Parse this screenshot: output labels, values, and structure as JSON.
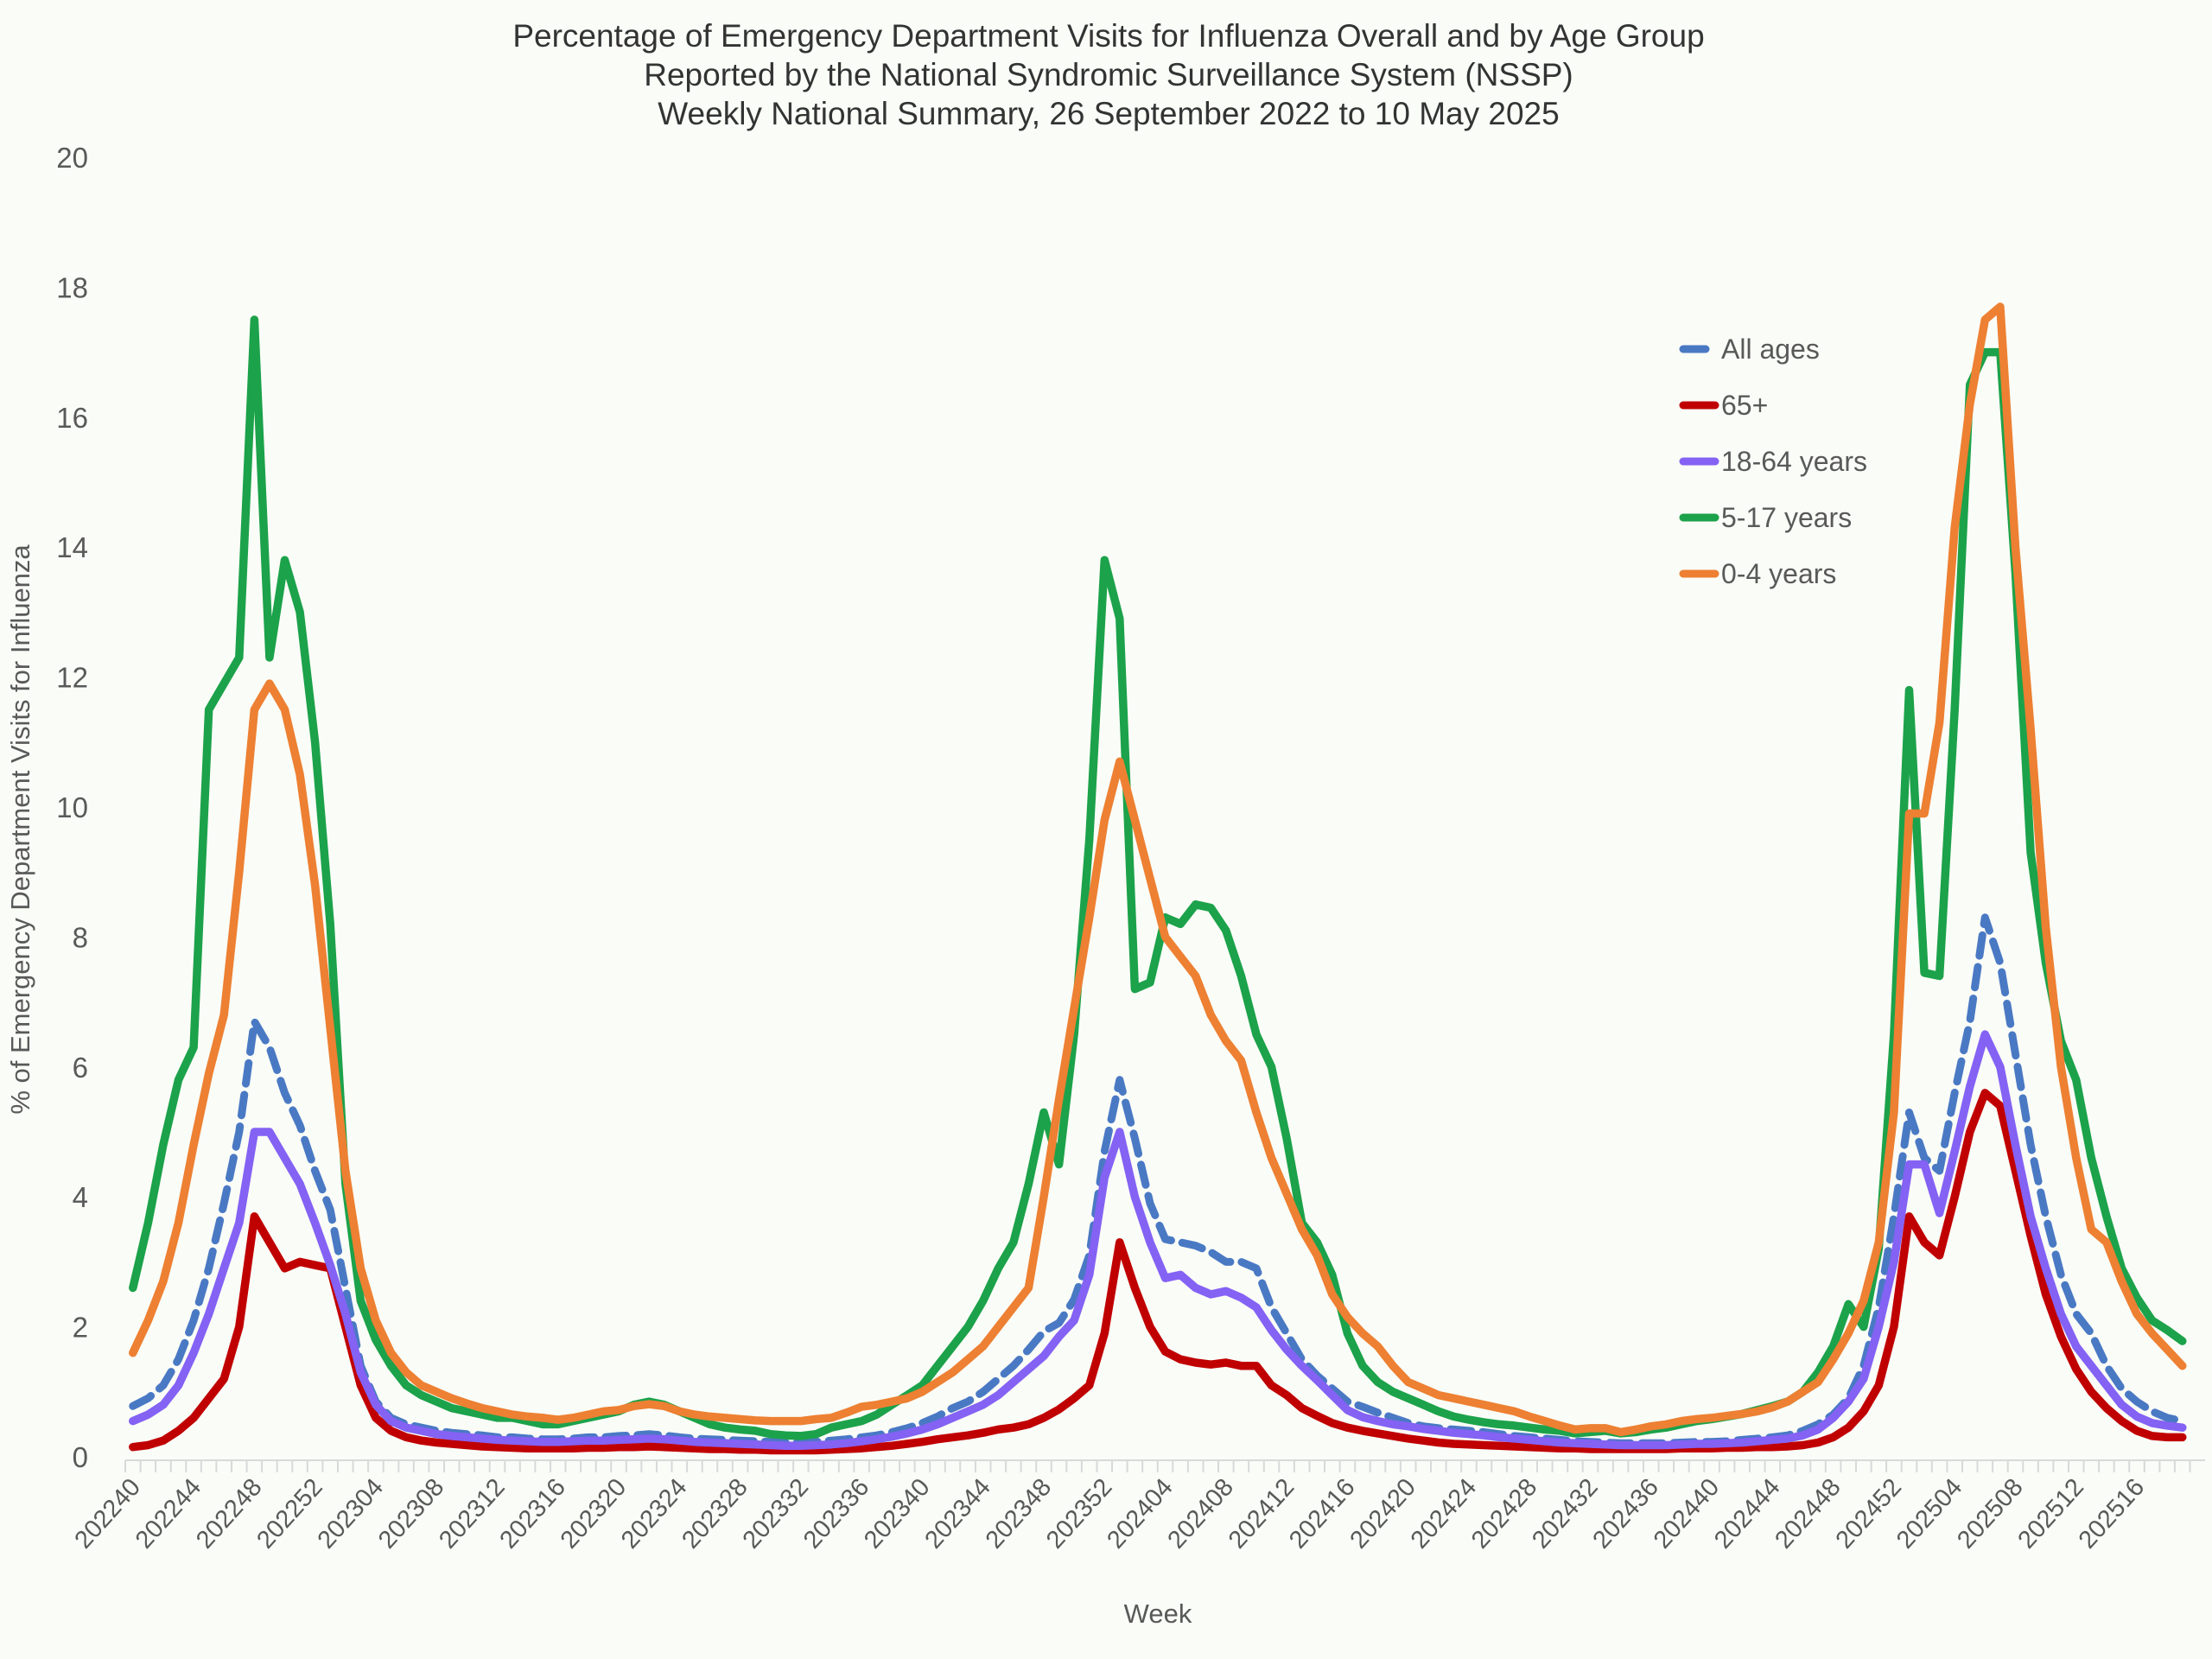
{
  "figure": {
    "title_line1": "Percentage of Emergency Department Visits for Influenza Overall and by Age Group",
    "title_line2": "Reported by the National Syndromic Surveillance System (NSSP)",
    "title_line3": "Weekly National Summary, 26 September 2022 to 10 May 2025"
  },
  "style": {
    "background": "#FAFCF7",
    "title_color": "#333333",
    "label_color": "#595959",
    "axis_color": "#D9D9D9"
  },
  "chart_data": {
    "type": "line",
    "title": "Percentage of Emergency Department Visits for Influenza Overall and by Age Group Reported by the National Syndromic Surveillance System (NSSP) Weekly National Summary, 26 September 2022 to 10 May 2025",
    "xlabel": "Week",
    "ylabel": "% of Emergency Department Visits for Influenza",
    "ylim": [
      0,
      20
    ],
    "ytick_step": 2,
    "grid": false,
    "legend_position": "inside upper right",
    "x_start_week": "202240",
    "x_end_week": "202519",
    "n_points": 136,
    "x_tick_every": 4,
    "x_tick_labels": [
      "202240",
      "202244",
      "202248",
      "202252",
      "202304",
      "202308",
      "202312",
      "202316",
      "202320",
      "202324",
      "202328",
      "202332",
      "202336",
      "202340",
      "202344",
      "202348",
      "202352",
      "202404",
      "202408",
      "202412",
      "202416",
      "202420",
      "202424",
      "202428",
      "202432",
      "202436",
      "202440",
      "202444",
      "202448",
      "202452",
      "202504",
      "202508",
      "202512",
      "202516"
    ],
    "series": [
      {
        "name": "All ages",
        "color": "#4A79C4",
        "dash": true,
        "values": [
          0.78,
          0.9,
          1.1,
          1.5,
          2.1,
          2.9,
          3.9,
          5.0,
          6.7,
          6.3,
          5.6,
          5.1,
          4.4,
          3.8,
          2.6,
          1.4,
          0.85,
          0.6,
          0.5,
          0.45,
          0.4,
          0.37,
          0.35,
          0.33,
          0.3,
          0.3,
          0.28,
          0.27,
          0.27,
          0.28,
          0.3,
          0.3,
          0.32,
          0.33,
          0.35,
          0.33,
          0.3,
          0.28,
          0.27,
          0.26,
          0.25,
          0.24,
          0.23,
          0.22,
          0.22,
          0.23,
          0.25,
          0.27,
          0.3,
          0.33,
          0.38,
          0.44,
          0.52,
          0.62,
          0.75,
          0.85,
          1.0,
          1.2,
          1.4,
          1.65,
          1.93,
          2.06,
          2.42,
          3.1,
          4.7,
          5.8,
          4.9,
          3.9,
          3.35,
          3.3,
          3.25,
          3.15,
          3.0,
          3.0,
          2.9,
          2.3,
          1.9,
          1.5,
          1.25,
          1.05,
          0.85,
          0.77,
          0.68,
          0.6,
          0.52,
          0.47,
          0.44,
          0.42,
          0.4,
          0.38,
          0.35,
          0.32,
          0.3,
          0.28,
          0.26,
          0.24,
          0.23,
          0.22,
          0.21,
          0.21,
          0.21,
          0.21,
          0.22,
          0.23,
          0.23,
          0.24,
          0.26,
          0.28,
          0.3,
          0.33,
          0.4,
          0.5,
          0.65,
          0.9,
          1.4,
          2.3,
          3.7,
          5.3,
          4.6,
          4.4,
          5.6,
          6.7,
          8.3,
          7.6,
          6.2,
          4.8,
          3.7,
          2.8,
          2.2,
          1.9,
          1.4,
          1.05,
          0.85,
          0.7,
          0.6,
          0.55
        ]
      },
      {
        "name": "65+",
        "color": "#C00000",
        "dash": false,
        "values": [
          0.15,
          0.18,
          0.25,
          0.4,
          0.6,
          0.9,
          1.2,
          2.0,
          3.7,
          3.3,
          2.9,
          3.0,
          2.95,
          2.9,
          2.0,
          1.1,
          0.6,
          0.4,
          0.3,
          0.25,
          0.22,
          0.2,
          0.18,
          0.16,
          0.15,
          0.14,
          0.13,
          0.13,
          0.13,
          0.13,
          0.14,
          0.14,
          0.15,
          0.15,
          0.16,
          0.15,
          0.14,
          0.13,
          0.12,
          0.12,
          0.11,
          0.11,
          0.1,
          0.1,
          0.1,
          0.1,
          0.11,
          0.12,
          0.13,
          0.15,
          0.17,
          0.2,
          0.23,
          0.27,
          0.3,
          0.33,
          0.37,
          0.42,
          0.45,
          0.5,
          0.6,
          0.73,
          0.9,
          1.1,
          1.9,
          3.3,
          2.6,
          2.0,
          1.62,
          1.5,
          1.45,
          1.42,
          1.45,
          1.4,
          1.4,
          1.1,
          0.95,
          0.75,
          0.63,
          0.52,
          0.45,
          0.4,
          0.36,
          0.32,
          0.28,
          0.25,
          0.22,
          0.2,
          0.19,
          0.18,
          0.17,
          0.16,
          0.15,
          0.14,
          0.13,
          0.13,
          0.12,
          0.12,
          0.12,
          0.12,
          0.12,
          0.12,
          0.13,
          0.13,
          0.13,
          0.14,
          0.14,
          0.15,
          0.15,
          0.16,
          0.18,
          0.22,
          0.3,
          0.45,
          0.7,
          1.1,
          2.0,
          3.7,
          3.3,
          3.1,
          4.0,
          5.0,
          5.6,
          5.4,
          4.4,
          3.4,
          2.5,
          1.85,
          1.35,
          1.0,
          0.75,
          0.55,
          0.4,
          0.32,
          0.3,
          0.3
        ]
      },
      {
        "name": "18-64 years",
        "color": "#8462F4",
        "dash": false,
        "values": [
          0.55,
          0.65,
          0.8,
          1.1,
          1.6,
          2.2,
          2.9,
          3.6,
          5.0,
          5.0,
          4.6,
          4.2,
          3.6,
          2.95,
          2.2,
          1.3,
          0.8,
          0.55,
          0.45,
          0.4,
          0.35,
          0.32,
          0.3,
          0.28,
          0.26,
          0.25,
          0.24,
          0.23,
          0.23,
          0.24,
          0.25,
          0.25,
          0.26,
          0.27,
          0.28,
          0.27,
          0.25,
          0.23,
          0.22,
          0.21,
          0.2,
          0.19,
          0.18,
          0.17,
          0.17,
          0.18,
          0.19,
          0.21,
          0.24,
          0.27,
          0.31,
          0.36,
          0.42,
          0.5,
          0.6,
          0.7,
          0.8,
          0.95,
          1.15,
          1.35,
          1.55,
          1.85,
          2.1,
          2.8,
          4.3,
          5.0,
          4.0,
          3.3,
          2.75,
          2.8,
          2.6,
          2.5,
          2.55,
          2.45,
          2.3,
          1.95,
          1.65,
          1.4,
          1.18,
          0.95,
          0.72,
          0.61,
          0.55,
          0.5,
          0.47,
          0.43,
          0.4,
          0.37,
          0.35,
          0.33,
          0.3,
          0.28,
          0.26,
          0.24,
          0.22,
          0.21,
          0.2,
          0.19,
          0.18,
          0.18,
          0.18,
          0.18,
          0.19,
          0.2,
          0.2,
          0.21,
          0.22,
          0.24,
          0.26,
          0.28,
          0.33,
          0.42,
          0.6,
          0.85,
          1.2,
          2.0,
          3.0,
          4.5,
          4.5,
          3.75,
          4.7,
          5.7,
          6.5,
          6.0,
          4.8,
          3.7,
          2.9,
          2.2,
          1.7,
          1.4,
          1.1,
          0.8,
          0.62,
          0.52,
          0.48,
          0.45
        ]
      },
      {
        "name": "5-17 years",
        "color": "#1CA24A",
        "dash": false,
        "values": [
          2.6,
          3.6,
          4.8,
          5.8,
          6.3,
          11.5,
          11.9,
          12.3,
          17.5,
          12.3,
          13.8,
          13.0,
          11.0,
          8.2,
          4.2,
          2.4,
          1.8,
          1.4,
          1.1,
          0.95,
          0.85,
          0.75,
          0.7,
          0.65,
          0.6,
          0.6,
          0.55,
          0.5,
          0.5,
          0.55,
          0.6,
          0.65,
          0.7,
          0.8,
          0.85,
          0.8,
          0.7,
          0.6,
          0.5,
          0.45,
          0.42,
          0.4,
          0.35,
          0.33,
          0.32,
          0.35,
          0.45,
          0.5,
          0.55,
          0.65,
          0.8,
          0.95,
          1.1,
          1.4,
          1.7,
          2.0,
          2.4,
          2.9,
          3.3,
          4.2,
          5.3,
          4.5,
          6.5,
          9.5,
          13.8,
          12.9,
          7.2,
          7.3,
          8.3,
          8.2,
          8.5,
          8.45,
          8.1,
          7.4,
          6.5,
          6.0,
          4.9,
          3.6,
          3.3,
          2.8,
          1.9,
          1.4,
          1.15,
          1.0,
          0.9,
          0.8,
          0.7,
          0.62,
          0.57,
          0.53,
          0.5,
          0.48,
          0.45,
          0.42,
          0.4,
          0.36,
          0.38,
          0.4,
          0.36,
          0.38,
          0.42,
          0.45,
          0.5,
          0.55,
          0.58,
          0.62,
          0.66,
          0.72,
          0.78,
          0.85,
          1.0,
          1.3,
          1.7,
          2.35,
          2.0,
          3.2,
          6.5,
          11.8,
          7.45,
          7.4,
          11.5,
          16.5,
          17.0,
          17.0,
          13.6,
          9.3,
          7.6,
          6.4,
          5.8,
          4.6,
          3.7,
          2.9,
          2.45,
          2.1,
          1.95,
          1.78
        ]
      },
      {
        "name": "0-4 years",
        "color": "#ED8032",
        "dash": false,
        "values": [
          1.6,
          2.1,
          2.7,
          3.6,
          4.8,
          5.9,
          6.8,
          9.0,
          11.5,
          11.9,
          11.5,
          10.5,
          8.8,
          6.6,
          4.4,
          2.9,
          2.1,
          1.6,
          1.3,
          1.1,
          1.0,
          0.9,
          0.82,
          0.75,
          0.7,
          0.65,
          0.62,
          0.6,
          0.57,
          0.6,
          0.65,
          0.7,
          0.72,
          0.78,
          0.81,
          0.78,
          0.7,
          0.65,
          0.62,
          0.6,
          0.58,
          0.56,
          0.55,
          0.55,
          0.55,
          0.58,
          0.6,
          0.68,
          0.77,
          0.8,
          0.85,
          0.9,
          1.0,
          1.15,
          1.3,
          1.5,
          1.7,
          2.0,
          2.3,
          2.6,
          4.0,
          5.5,
          6.9,
          8.3,
          9.8,
          10.7,
          9.8,
          8.9,
          8.0,
          7.7,
          7.4,
          6.8,
          6.4,
          6.1,
          5.3,
          4.6,
          4.05,
          3.5,
          3.1,
          2.5,
          2.15,
          1.9,
          1.7,
          1.4,
          1.15,
          1.05,
          0.95,
          0.9,
          0.85,
          0.8,
          0.75,
          0.7,
          0.62,
          0.55,
          0.48,
          0.42,
          0.44,
          0.44,
          0.38,
          0.42,
          0.47,
          0.5,
          0.55,
          0.58,
          0.6,
          0.63,
          0.66,
          0.7,
          0.76,
          0.85,
          1.0,
          1.15,
          1.5,
          1.9,
          2.4,
          3.3,
          5.3,
          9.9,
          9.9,
          11.3,
          14.3,
          16.2,
          17.5,
          17.7,
          14.0,
          11.2,
          8.15,
          6.0,
          4.6,
          3.5,
          3.3,
          2.7,
          2.2,
          1.9,
          1.65,
          1.4
        ]
      }
    ]
  }
}
